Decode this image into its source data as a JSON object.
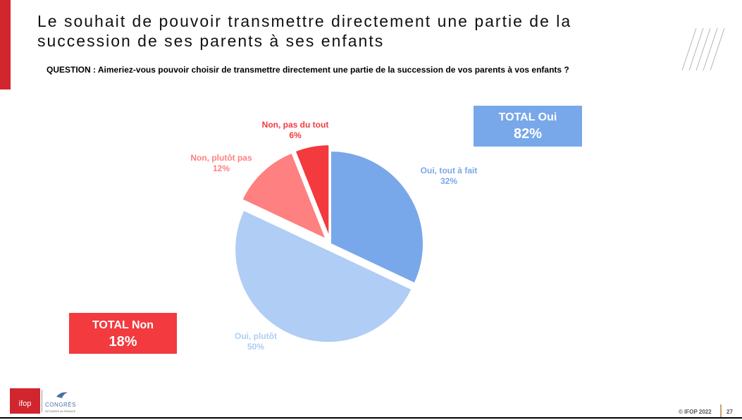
{
  "title": "Le souhait de pouvoir transmettre directement une partie de la succession de ses parents à ses enfants",
  "question": "QUESTION : Aimeriez-vous pouvoir choisir de transmettre directement une partie de la succession de vos parents à vos enfants ?",
  "total_oui": {
    "label": "TOTAL Oui",
    "value": "82%"
  },
  "total_non": {
    "label": "TOTAL Non",
    "value": "18%"
  },
  "colors": {
    "accent_red": "#d2262e",
    "oui_tout_a_fait": "#78a8ea",
    "oui_plutot": "#afcdf5",
    "non_plutot_pas": "#ff8080",
    "non_pas_du_tout": "#f23a3f"
  },
  "chart_data": {
    "type": "pie",
    "slices": [
      {
        "name": "Oui, tout à fait",
        "value": 32,
        "label": "32%",
        "color": "#78a8ea",
        "exploded": false
      },
      {
        "name": "Oui, plutôt",
        "value": 50,
        "label": "50%",
        "color": "#afcdf5",
        "exploded": true
      },
      {
        "name": "Non, plutôt pas",
        "value": 12,
        "label": "12%",
        "color": "#ff8080",
        "exploded": true
      },
      {
        "name": "Non, pas du tout",
        "value": 6,
        "label": "6%",
        "color": "#f23a3f",
        "exploded": true
      }
    ]
  },
  "footer": {
    "logo_text": "ifop",
    "partner_logo_text": "CONGRÈS",
    "partner_logo_subtext": "NOTAIRES de FRANCE",
    "copyright": "© IFOP 2022",
    "page_number": "27"
  }
}
